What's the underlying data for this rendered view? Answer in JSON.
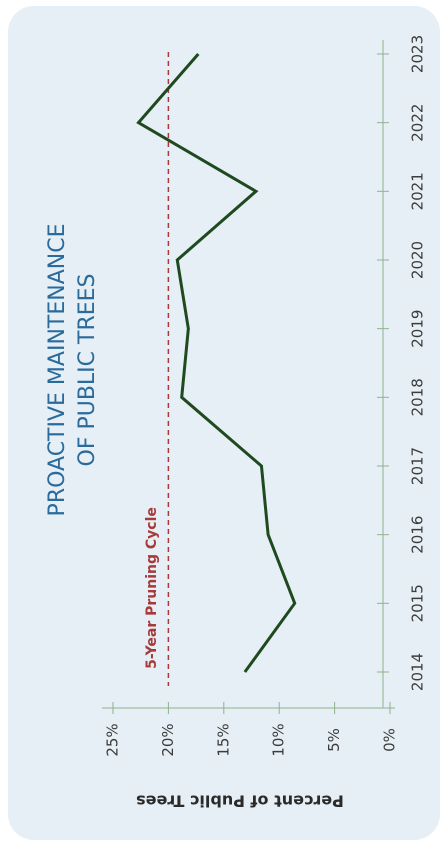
{
  "chart_data": {
    "type": "line",
    "title_lines": [
      "PROACTIVE MAINTENANCE",
      "OF PUBLIC TREES"
    ],
    "y_label": "Percent of Public Trees",
    "categories": [
      "2014",
      "2015",
      "2016",
      "2017",
      "2018",
      "2019",
      "2020",
      "2021",
      "2022",
      "2023"
    ],
    "series": [
      {
        "name": "Proactive maintenance",
        "color": "#1f4a1f",
        "values": [
          13.1,
          8.6,
          11.0,
          11.6,
          18.8,
          18.2,
          19.2,
          12.1,
          22.7,
          17.3
        ]
      }
    ],
    "reference_line": {
      "value": 20,
      "label": "5-Year Pruning Cycle",
      "color": "#a83a3a"
    },
    "ylim": [
      0,
      26
    ],
    "yticks": [
      {
        "value": 0,
        "label": "0%"
      },
      {
        "value": 5,
        "label": "5%"
      },
      {
        "value": 10,
        "label": "10%"
      },
      {
        "value": 15,
        "label": "15%"
      },
      {
        "value": 20,
        "label": "20%"
      },
      {
        "value": 25,
        "label": "25%"
      }
    ]
  }
}
